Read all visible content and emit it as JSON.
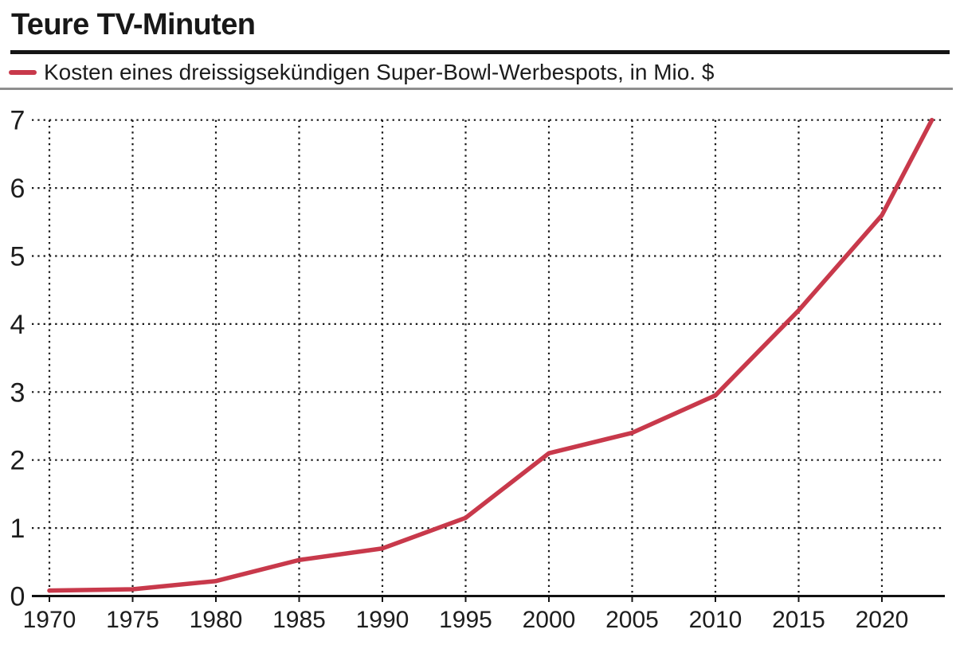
{
  "header": {
    "title": "Teure TV-Minuten",
    "legend": {
      "label": "Kosten eines dreissigsekündigen Super-Bowl-Werbespots, in Mio. $",
      "swatch_color": "#c8394b"
    }
  },
  "chart_data": {
    "type": "line",
    "title": "Teure TV-Minuten",
    "series": [
      {
        "name": "Kosten eines dreissigsekündigen Super-Bowl-Werbespots, in Mio. $",
        "color": "#c8394b",
        "x": [
          1970,
          1975,
          1980,
          1985,
          1990,
          1995,
          2000,
          2005,
          2010,
          2015,
          2020,
          2023
        ],
        "y": [
          0.08,
          0.1,
          0.22,
          0.53,
          0.7,
          1.15,
          2.1,
          2.4,
          2.95,
          4.2,
          5.6,
          7.0
        ]
      }
    ],
    "xlabel": "",
    "ylabel": "in Mio. $",
    "x_ticks": [
      1970,
      1975,
      1980,
      1985,
      1990,
      1995,
      2000,
      2005,
      2010,
      2015,
      2020
    ],
    "y_ticks": [
      0,
      1,
      2,
      3,
      4,
      5,
      6,
      7
    ],
    "xlim": [
      1969,
      2024
    ],
    "ylim": [
      0,
      7
    ],
    "grid": "dotted",
    "legend_position": "top"
  }
}
